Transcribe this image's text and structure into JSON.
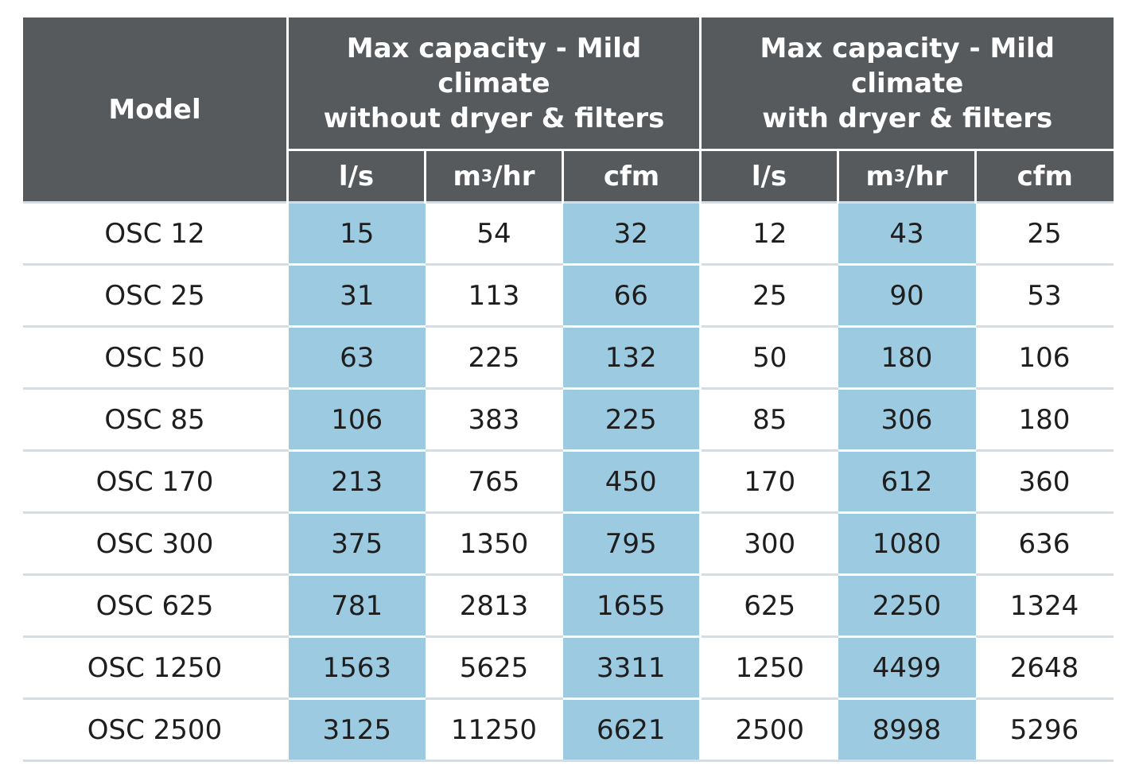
{
  "header": {
    "model": "Model",
    "group1_line1": "Max capacity - Mild climate",
    "group1_line2": "without dryer & filters",
    "group2_line1": "Max capacity - Mild climate",
    "group2_line2": "with dryer & filters",
    "unit_ls": "l/s",
    "unit_m3_base": "m",
    "unit_m3_sup": "3",
    "unit_m3_tail": "/hr",
    "unit_cfm": "cfm"
  },
  "rows": [
    {
      "model": "OSC 12",
      "values": [
        "15",
        "54",
        "32",
        "12",
        "43",
        "25"
      ]
    },
    {
      "model": "OSC 25",
      "values": [
        "31",
        "113",
        "66",
        "25",
        "90",
        "53"
      ]
    },
    {
      "model": "OSC 50",
      "values": [
        "63",
        "225",
        "132",
        "50",
        "180",
        "106"
      ]
    },
    {
      "model": "OSC 85",
      "values": [
        "106",
        "383",
        "225",
        "85",
        "306",
        "180"
      ]
    },
    {
      "model": "OSC 170",
      "values": [
        "213",
        "765",
        "450",
        "170",
        "612",
        "360"
      ]
    },
    {
      "model": "OSC 300",
      "values": [
        "375",
        "1350",
        "795",
        "300",
        "1080",
        "636"
      ]
    },
    {
      "model": "OSC 625",
      "values": [
        "781",
        "2813",
        "1655",
        "625",
        "2250",
        "1324"
      ]
    },
    {
      "model": "OSC 1250",
      "values": [
        "1563",
        "5625",
        "3311",
        "1250",
        "4499",
        "2648"
      ]
    },
    {
      "model": "OSC 2500",
      "values": [
        "3125",
        "11250",
        "6621",
        "2500",
        "8998",
        "5296"
      ]
    }
  ],
  "colors": {
    "header_bg": "#575a5d",
    "highlight_column": "#9ccae1",
    "row_divider": "#d2dde6"
  }
}
